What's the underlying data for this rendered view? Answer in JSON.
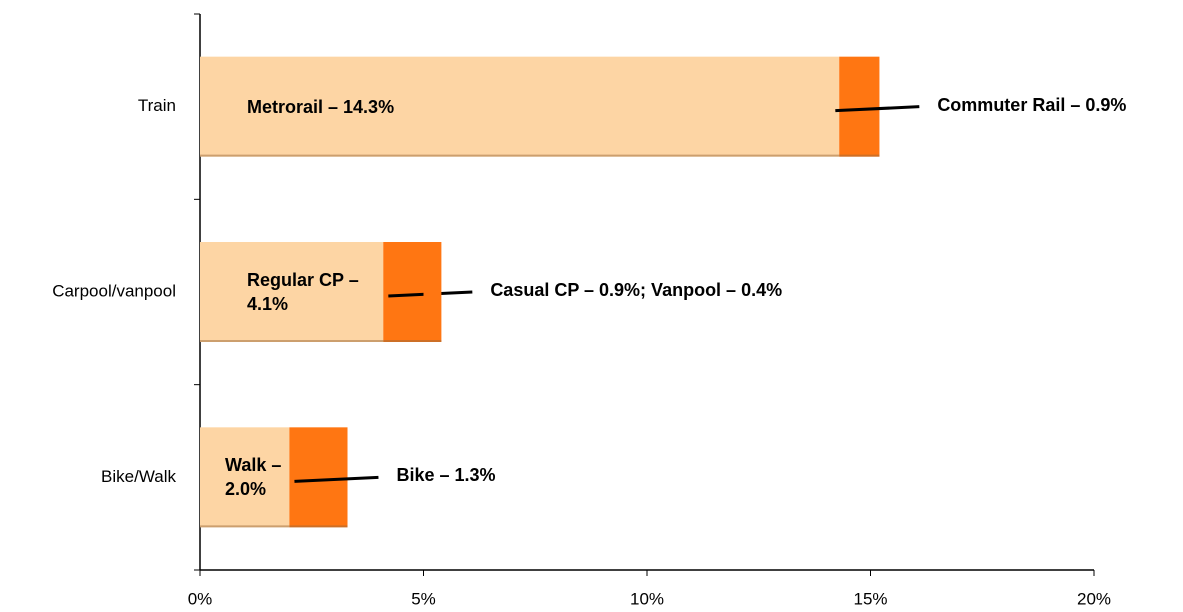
{
  "chart_data": {
    "type": "stacked-bar-horizontal",
    "categories": [
      "Train",
      "Carpool/vanpool",
      "Bike/Walk"
    ],
    "series": [
      {
        "color": "#fdd5a4",
        "values": [
          14.3,
          4.1,
          2.0
        ],
        "value_labels": [
          "Metrorail – 14.3%",
          "Regular CP – 4.1%",
          "Walk – 2.0%"
        ]
      },
      {
        "color": "#ff7612",
        "values": [
          0.9,
          0.9,
          1.3
        ],
        "value_labels": [
          "Commuter Rail – 0.9%",
          "Casual CP – 0.9%; Vanpool – 0.4%",
          "Bike – 1.3%"
        ]
      },
      {
        "color": "#ff7612",
        "values": [
          null,
          0.4,
          null
        ]
      }
    ],
    "xlim": [
      0,
      20
    ],
    "xticks": [
      {
        "value": 0,
        "label": "0%"
      },
      {
        "value": 5,
        "label": "5%"
      },
      {
        "value": 10,
        "label": "10%"
      },
      {
        "value": 15,
        "label": "15%"
      },
      {
        "value": 20,
        "label": "20%"
      }
    ]
  }
}
